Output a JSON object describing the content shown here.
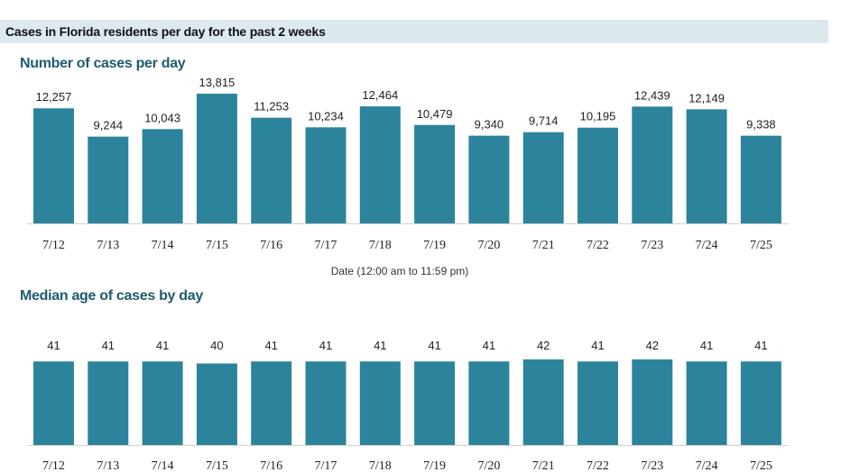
{
  "header": {
    "title": "Cases in Florida residents per day for the past 2 weeks"
  },
  "colors": {
    "bar": "#2c849c",
    "header_band": "#dce9ef",
    "section_title": "#1f5a6e"
  },
  "chart_data": [
    {
      "type": "bar",
      "title": "Number of cases per day",
      "categories": [
        "7/12",
        "7/13",
        "7/14",
        "7/15",
        "7/16",
        "7/17",
        "7/18",
        "7/19",
        "7/20",
        "7/21",
        "7/22",
        "7/23",
        "7/24",
        "7/25"
      ],
      "values": [
        12257,
        9244,
        10043,
        13815,
        11253,
        10234,
        12464,
        10479,
        9340,
        9714,
        10195,
        12439,
        12149,
        9338
      ],
      "value_labels": [
        "12,257",
        "9,244",
        "10,043",
        "13,815",
        "11,253",
        "10,234",
        "12,464",
        "10,479",
        "9,340",
        "9,714",
        "10,195",
        "12,439",
        "12,149",
        "9,338"
      ],
      "xlabel": "Date (12:00 am to 11:59 pm)",
      "ylabel": "",
      "ylim": [
        0,
        15000
      ],
      "grid": false,
      "legend": "none"
    },
    {
      "type": "bar",
      "title": "Median age of cases by day",
      "categories": [
        "7/12",
        "7/13",
        "7/14",
        "7/15",
        "7/16",
        "7/17",
        "7/18",
        "7/19",
        "7/20",
        "7/21",
        "7/22",
        "7/23",
        "7/24",
        "7/25"
      ],
      "values": [
        41,
        41,
        41,
        40,
        41,
        41,
        41,
        41,
        41,
        42,
        41,
        42,
        41,
        41
      ],
      "value_labels": [
        "41",
        "41",
        "41",
        "40",
        "41",
        "41",
        "41",
        "41",
        "41",
        "42",
        "41",
        "42",
        "41",
        "41"
      ],
      "xlabel": "",
      "ylabel": "",
      "ylim": [
        0,
        46
      ],
      "grid": false,
      "legend": "none"
    }
  ]
}
